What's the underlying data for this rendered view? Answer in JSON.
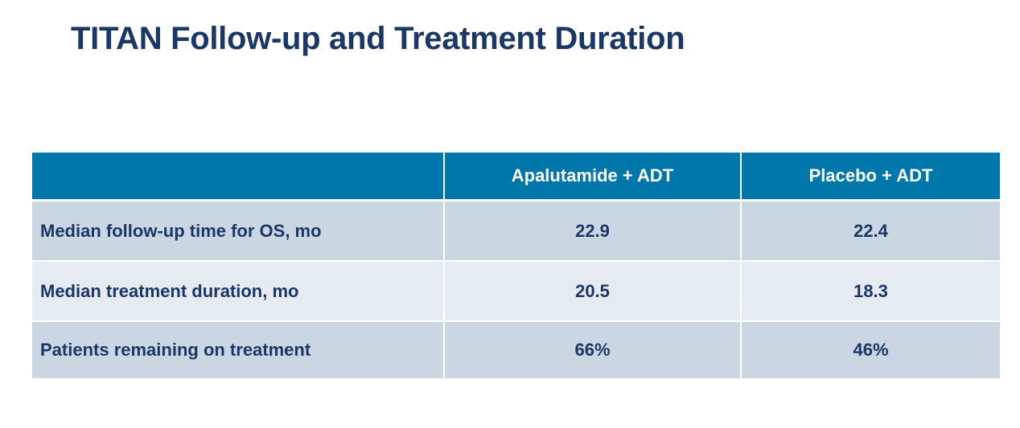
{
  "title": "TITAN Follow-up and Treatment Duration",
  "table": {
    "headers": [
      "",
      "Apalutamide + ADT",
      "Placebo + ADT"
    ],
    "rows": [
      {
        "label": "Median follow-up time for OS, mo",
        "apalutamide": "22.9",
        "placebo": "22.4"
      },
      {
        "label": "Median treatment duration, mo",
        "apalutamide": "20.5",
        "placebo": "18.3"
      },
      {
        "label": "Patients remaining on treatment",
        "apalutamide": "66%",
        "placebo": "46%"
      }
    ]
  },
  "colors": {
    "title": "#1a3768",
    "header_bg": "#0077aa",
    "row_dark_bg": "#cbd6e3",
    "row_light_bg": "#e6ebf2",
    "cell_text": "#1a3768"
  }
}
